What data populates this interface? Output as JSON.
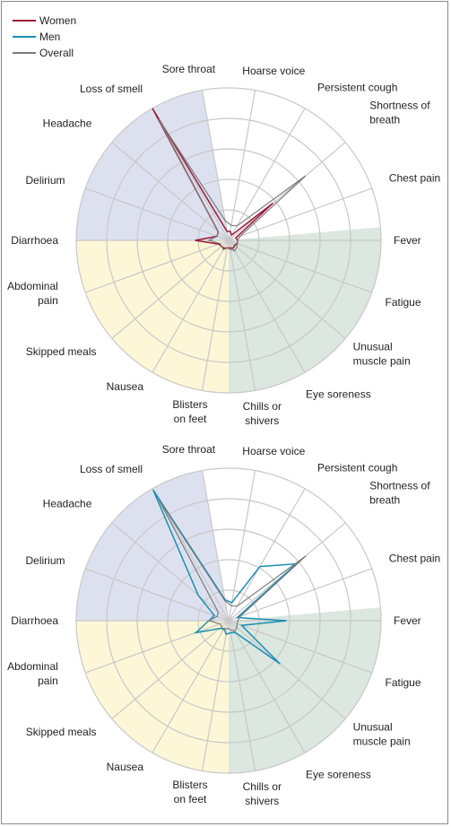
{
  "legend": {
    "items": [
      {
        "label": "Women",
        "color": "#9b1b3a"
      },
      {
        "label": "Men",
        "color": "#1a8fb5"
      },
      {
        "label": "Overall",
        "color": "#7a7a7a"
      }
    ]
  },
  "colors": {
    "sector_upper_left": "#dde1ef",
    "sector_left": "#fdf7d8",
    "sector_right": "#dbe7df",
    "grid": "#c8c8c8"
  },
  "chart_data": [
    {
      "type": "radar",
      "series": [
        {
          "name": "Women",
          "key": "women",
          "color": "#9b1b3a",
          "values": [
            0.06,
            0.06,
            0.04,
            0.38,
            0.05,
            0.06,
            0.06,
            0.05,
            0.06,
            0.05,
            0.05,
            0.06,
            0.06,
            0.07,
            0.22,
            0.08,
            0.09,
            1.0
          ]
        },
        {
          "name": "Overall",
          "key": "overall",
          "color": "#7a7a7a",
          "values": [
            0.13,
            0.1,
            0.11,
            0.66,
            0.08,
            0.06,
            0.06,
            0.07,
            0.08,
            0.06,
            0.05,
            0.07,
            0.06,
            0.06,
            0.13,
            0.08,
            0.09,
            0.92
          ]
        }
      ],
      "categories": [
        "Sore throat",
        "Hoarse voice",
        "Persistent cough",
        "Shortness of breath",
        "Chest pain",
        "Fever",
        "Fatigue",
        "Unusual muscle pain",
        "Eye soreness",
        "Chills or shivers",
        "Blisters on feet",
        "Nausea",
        "Skipped meals",
        "Abdominal pain",
        "Diarrhoea",
        "Delirium",
        "Headache",
        "Loss of smell"
      ]
    },
    {
      "type": "radar",
      "series": [
        {
          "name": "Men",
          "key": "men",
          "color": "#1a8fb5",
          "values": [
            0.14,
            0.12,
            0.41,
            0.58,
            0.06,
            0.38,
            0.09,
            0.44,
            0.09,
            0.08,
            0.09,
            0.06,
            0.08,
            0.23,
            0.13,
            0.1,
            0.26,
            0.99
          ]
        },
        {
          "name": "Overall",
          "key": "overall",
          "color": "#7a7a7a",
          "values": [
            0.13,
            0.1,
            0.11,
            0.66,
            0.08,
            0.06,
            0.06,
            0.07,
            0.08,
            0.06,
            0.05,
            0.07,
            0.06,
            0.06,
            0.13,
            0.08,
            0.09,
            0.92
          ]
        }
      ],
      "categories": [
        "Sore throat",
        "Hoarse voice",
        "Persistent cough",
        "Shortness of breath",
        "Chest pain",
        "Fever",
        "Fatigue",
        "Unusual muscle pain",
        "Eye soreness",
        "Chills or shivers",
        "Blisters on feet",
        "Nausea",
        "Skipped meals",
        "Abdominal pain",
        "Diarrhoea",
        "Delirium",
        "Headache",
        "Loss of smell"
      ]
    }
  ],
  "axis_labels": [
    [
      "Sore throat"
    ],
    [
      "Hoarse voice"
    ],
    [
      "Persistent cough"
    ],
    [
      "Shortness of",
      "breath"
    ],
    [
      "Chest pain"
    ],
    [
      "Fever"
    ],
    [
      "Fatigue"
    ],
    [
      "Unusual",
      "muscle pain"
    ],
    [
      "Eye soreness"
    ],
    [
      "Chills or",
      "shivers"
    ],
    [
      "Blisters",
      "on feet"
    ],
    [
      "Nausea"
    ],
    [
      "Skipped meals"
    ],
    [
      "Abdominal",
      "pain"
    ],
    [
      "Diarrhoea"
    ],
    [
      "Delirium"
    ],
    [
      "Headache"
    ],
    [
      "Loss of smell"
    ]
  ]
}
